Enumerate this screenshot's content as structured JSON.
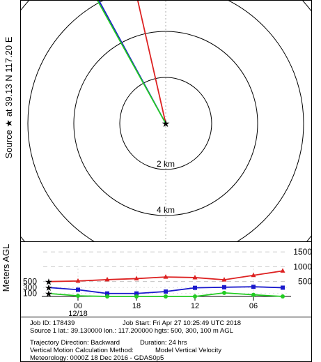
{
  "source_label": "Source ★ at 39.13 N 117.20 E",
  "chart_data": [
    {
      "type": "line",
      "name": "trajectory-map",
      "ring_labels": [
        "2 km",
        "4 km"
      ],
      "series": [
        {
          "color": "#dd2222",
          "points": [
            [
              0,
              0
            ],
            [
              -4.1,
              18.0
            ]
          ]
        },
        {
          "color": "#1a1acc",
          "points": [
            [
              0,
              0
            ],
            [
              -4.3,
              7.9
            ],
            [
              -6.9,
              18.0
            ]
          ]
        },
        {
          "color": "#22cc22",
          "points": [
            [
              0,
              0
            ],
            [
              -3.5,
              6.3
            ],
            [
              -6.4,
              12.9
            ],
            [
              -7.6,
              18.0
            ]
          ]
        }
      ]
    },
    {
      "type": "line",
      "name": "height-profile",
      "ylabel": "Meters AGL",
      "y_ticks_right": [
        500,
        1000,
        1500
      ],
      "y_ticks_left": [
        100,
        300,
        500
      ],
      "x_ticks": [
        {
          "hour": 3,
          "label": "00",
          "sublabel": "12/18"
        },
        {
          "hour": 9,
          "label": "18",
          "sublabel": ""
        },
        {
          "hour": 15,
          "label": "12",
          "sublabel": ""
        },
        {
          "hour": 21,
          "label": "06",
          "sublabel": ""
        }
      ],
      "x_range_hours": [
        0,
        24
      ],
      "y_range": [
        0,
        1750
      ],
      "series": [
        {
          "color": "#dd2222",
          "marker": "triangle",
          "x": [
            0,
            3,
            6,
            9,
            12,
            15,
            18,
            21,
            24
          ],
          "y": [
            500,
            520,
            565,
            600,
            655,
            635,
            560,
            710,
            860
          ]
        },
        {
          "color": "#1a1acc",
          "marker": "square",
          "x": [
            0,
            3,
            6,
            9,
            12,
            15,
            18,
            21,
            24
          ],
          "y": [
            300,
            225,
            100,
            100,
            165,
            290,
            310,
            325,
            295
          ]
        },
        {
          "color": "#22cc22",
          "marker": "circle",
          "x": [
            0,
            3,
            6,
            9,
            12,
            15,
            18,
            21,
            24
          ],
          "y": [
            100,
            20,
            0,
            0,
            0,
            0,
            120,
            55,
            0
          ]
        }
      ]
    }
  ],
  "info": {
    "line1_left": "Job ID: 178439",
    "line1_right": "Job Start: Fri Apr 27 10:25:49 UTC 2018",
    "line2": "Source 1 lat.: 39.130000  lon.: 117.200000  hgts: 500, 300, 100 m AGL",
    "line3_left": "Trajectory Direction: Backward",
    "line3_right": "Duration: 24 hrs",
    "line4_left": "Vertical Motion Calculation Method:",
    "line4_right": "Model Vertical Velocity",
    "line5": "Meteorology: 0000Z 18 Dec 2016 - GDAS0p5"
  }
}
